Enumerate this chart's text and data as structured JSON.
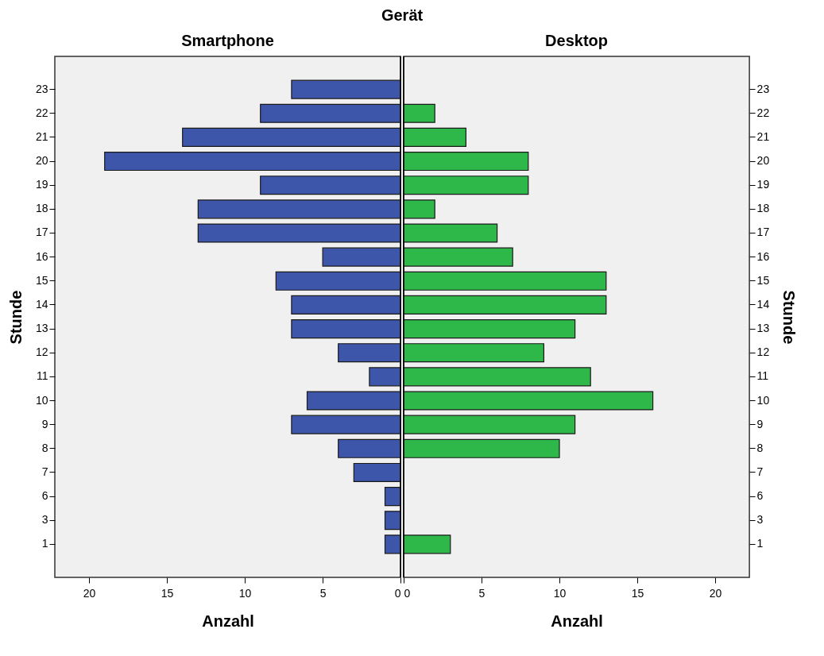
{
  "chart_data": [
    {
      "type": "bar",
      "orientation": "horizontal",
      "title": "Smartphone",
      "xlabel": "Anzahl",
      "ylabel": "Stunde",
      "annotations": [
        "Gerät"
      ],
      "categories": [
        "23",
        "22",
        "21",
        "20",
        "19",
        "18",
        "17",
        "16",
        "15",
        "14",
        "13",
        "12",
        "11",
        "10",
        "9",
        "8",
        "7",
        "6",
        "3",
        "1"
      ],
      "values": [
        7,
        9,
        14,
        19,
        9,
        13,
        13,
        5,
        8,
        7,
        7,
        4,
        2,
        6,
        7,
        4,
        3,
        1,
        1,
        1
      ],
      "color": "#3e56a9",
      "xlim": [
        22.2,
        0
      ],
      "xticks": [
        0,
        5,
        10,
        15,
        20
      ]
    },
    {
      "type": "bar",
      "orientation": "horizontal",
      "title": "Desktop",
      "xlabel": "Anzahl",
      "ylabel": "Stunde",
      "categories": [
        "23",
        "22",
        "21",
        "20",
        "19",
        "18",
        "17",
        "16",
        "15",
        "14",
        "13",
        "12",
        "11",
        "10",
        "9",
        "8",
        "7",
        "6",
        "3",
        "1"
      ],
      "values": [
        null,
        2,
        4,
        8,
        8,
        2,
        6,
        7,
        13,
        13,
        11,
        9,
        12,
        16,
        11,
        10,
        null,
        null,
        null,
        3
      ],
      "color": "#2fb84a",
      "xlim": [
        0,
        22.2
      ],
      "xticks": [
        0,
        5,
        10,
        15,
        20
      ]
    }
  ]
}
